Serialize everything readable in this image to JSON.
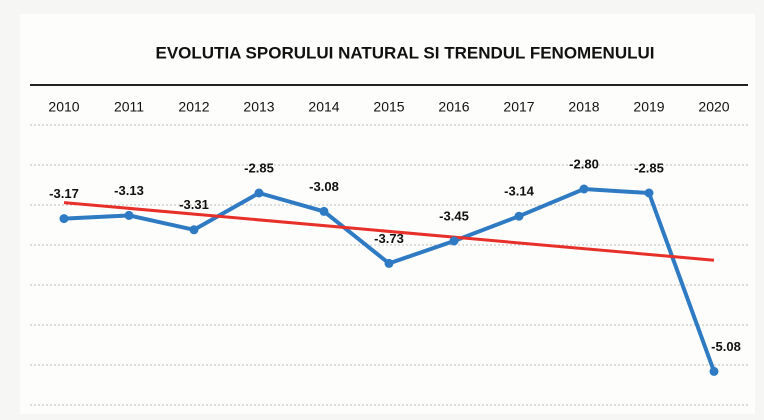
{
  "chart_data": {
    "type": "line",
    "title": "EVOLUTIA SPORULUI NATURAL SI TRENDUL FENOMENULUI",
    "categories": [
      "2010",
      "2011",
      "2012",
      "2013",
      "2014",
      "2015",
      "2016",
      "2017",
      "2018",
      "2019",
      "2020"
    ],
    "series": [
      {
        "color": "#2e7bc4",
        "values": [
          -3.17,
          -3.13,
          -3.31,
          -2.85,
          -3.08,
          -3.73,
          -3.45,
          -3.14,
          -2.8,
          -2.85,
          -5.08
        ]
      }
    ],
    "trend": {
      "color": "#e8302a",
      "start": -2.97,
      "end": -3.69
    },
    "value_labels": [
      "-3.17",
      "-3.13",
      "-3.31",
      "-2.85",
      "-3.08",
      "-3.73",
      "-3.45",
      "-3.14",
      "-2.80",
      "-2.85",
      "-5.08"
    ],
    "ylim": [
      -5.5,
      -1.5
    ],
    "yticks": [
      -5.5,
      -5,
      -4.5,
      -4,
      -3.5,
      -3,
      -2.5,
      -2
    ],
    "grid": true
  }
}
